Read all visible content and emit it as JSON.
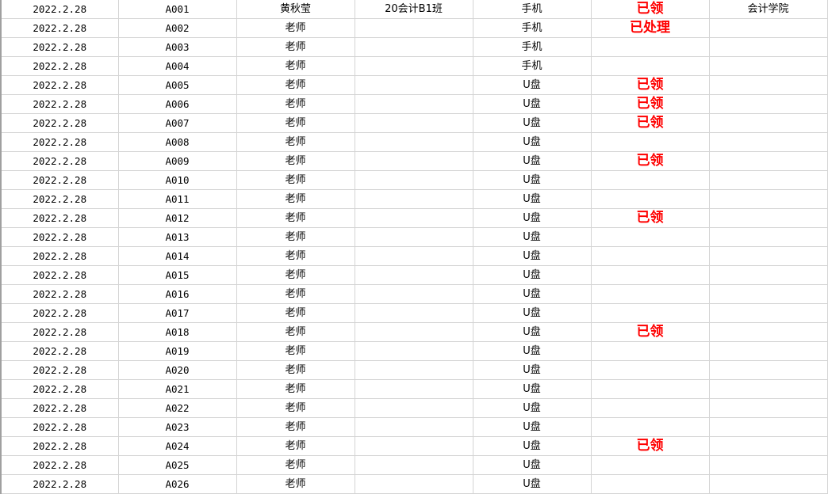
{
  "colors": {
    "status": "#ff0000",
    "grid": "#d4d4d4"
  },
  "rows": [
    {
      "date": "2022.2.28",
      "id": "A001",
      "name": "黄秋莹",
      "class": "20会计B1班",
      "item": "手机",
      "status": "已领",
      "college": "会计学院"
    },
    {
      "date": "2022.2.28",
      "id": "A002",
      "name": "老师",
      "class": "",
      "item": "手机",
      "status": "已处理",
      "college": ""
    },
    {
      "date": "2022.2.28",
      "id": "A003",
      "name": "老师",
      "class": "",
      "item": "手机",
      "status": "",
      "college": ""
    },
    {
      "date": "2022.2.28",
      "id": "A004",
      "name": "老师",
      "class": "",
      "item": "手机",
      "status": "",
      "college": ""
    },
    {
      "date": "2022.2.28",
      "id": "A005",
      "name": "老师",
      "class": "",
      "item": "U盘",
      "status": "已领",
      "college": ""
    },
    {
      "date": "2022.2.28",
      "id": "A006",
      "name": "老师",
      "class": "",
      "item": "U盘",
      "status": "已领",
      "college": ""
    },
    {
      "date": "2022.2.28",
      "id": "A007",
      "name": "老师",
      "class": "",
      "item": "U盘",
      "status": "已领",
      "college": ""
    },
    {
      "date": "2022.2.28",
      "id": "A008",
      "name": "老师",
      "class": "",
      "item": "U盘",
      "status": "",
      "college": ""
    },
    {
      "date": "2022.2.28",
      "id": "A009",
      "name": "老师",
      "class": "",
      "item": "U盘",
      "status": "已领",
      "college": ""
    },
    {
      "date": "2022.2.28",
      "id": "A010",
      "name": "老师",
      "class": "",
      "item": "U盘",
      "status": "",
      "college": ""
    },
    {
      "date": "2022.2.28",
      "id": "A011",
      "name": "老师",
      "class": "",
      "item": "U盘",
      "status": "",
      "college": ""
    },
    {
      "date": "2022.2.28",
      "id": "A012",
      "name": "老师",
      "class": "",
      "item": "U盘",
      "status": "已领",
      "college": ""
    },
    {
      "date": "2022.2.28",
      "id": "A013",
      "name": "老师",
      "class": "",
      "item": "U盘",
      "status": "",
      "college": ""
    },
    {
      "date": "2022.2.28",
      "id": "A014",
      "name": "老师",
      "class": "",
      "item": "U盘",
      "status": "",
      "college": ""
    },
    {
      "date": "2022.2.28",
      "id": "A015",
      "name": "老师",
      "class": "",
      "item": "U盘",
      "status": "",
      "college": ""
    },
    {
      "date": "2022.2.28",
      "id": "A016",
      "name": "老师",
      "class": "",
      "item": "U盘",
      "status": "",
      "college": ""
    },
    {
      "date": "2022.2.28",
      "id": "A017",
      "name": "老师",
      "class": "",
      "item": "U盘",
      "status": "",
      "college": ""
    },
    {
      "date": "2022.2.28",
      "id": "A018",
      "name": "老师",
      "class": "",
      "item": "U盘",
      "status": "已领",
      "college": ""
    },
    {
      "date": "2022.2.28",
      "id": "A019",
      "name": "老师",
      "class": "",
      "item": "U盘",
      "status": "",
      "college": ""
    },
    {
      "date": "2022.2.28",
      "id": "A020",
      "name": "老师",
      "class": "",
      "item": "U盘",
      "status": "",
      "college": ""
    },
    {
      "date": "2022.2.28",
      "id": "A021",
      "name": "老师",
      "class": "",
      "item": "U盘",
      "status": "",
      "college": ""
    },
    {
      "date": "2022.2.28",
      "id": "A022",
      "name": "老师",
      "class": "",
      "item": "U盘",
      "status": "",
      "college": ""
    },
    {
      "date": "2022.2.28",
      "id": "A023",
      "name": "老师",
      "class": "",
      "item": "U盘",
      "status": "",
      "college": ""
    },
    {
      "date": "2022.2.28",
      "id": "A024",
      "name": "老师",
      "class": "",
      "item": "U盘",
      "status": "已领",
      "college": ""
    },
    {
      "date": "2022.2.28",
      "id": "A025",
      "name": "老师",
      "class": "",
      "item": "U盘",
      "status": "",
      "college": ""
    },
    {
      "date": "2022.2.28",
      "id": "A026",
      "name": "老师",
      "class": "",
      "item": "U盘",
      "status": "",
      "college": ""
    }
  ]
}
